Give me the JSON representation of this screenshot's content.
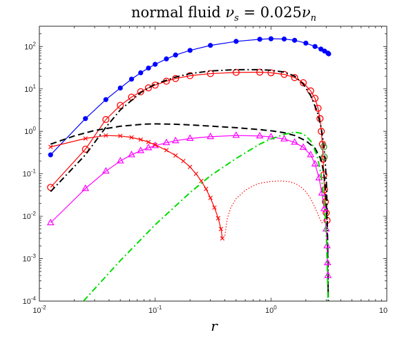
{
  "chart_data": {
    "type": "line",
    "title": "normal fluid ν_s = 0.025ν_n",
    "title_parts": {
      "prefix": "normal fluid ",
      "nu": "ν",
      "sub_s": "s",
      "rhs": " = 0.025",
      "sub_n": "n"
    },
    "xlabel": "r",
    "ylabel": "",
    "xscale": "log",
    "yscale": "log",
    "xlim": [
      0.01,
      10
    ],
    "ylim": [
      0.0001,
      300
    ],
    "grid": false,
    "x_tick_labels": [
      {
        "base": "10",
        "exp": "-2",
        "value": 0.01
      },
      {
        "base": "10",
        "exp": "-1",
        "value": 0.1
      },
      {
        "base": "10",
        "exp": "0",
        "value": 1
      },
      {
        "base": "10",
        "exp": "",
        "value": 10
      }
    ],
    "y_tick_labels": [
      {
        "base": "10",
        "exp": "-4",
        "value": 0.0001
      },
      {
        "base": "10",
        "exp": "-3",
        "value": 0.001
      },
      {
        "base": "10",
        "exp": "-2",
        "value": 0.01
      },
      {
        "base": "10",
        "exp": "-1",
        "value": 0.1
      },
      {
        "base": "10",
        "exp": "0",
        "value": 1
      },
      {
        "base": "10",
        "exp": "1",
        "value": 10
      },
      {
        "base": "10",
        "exp": "2",
        "value": 100
      }
    ],
    "series": [
      {
        "color": "#0000ff",
        "line": "solid",
        "marker": "filled-circle",
        "x": [
          0.0125,
          0.025,
          0.0375,
          0.05,
          0.0625,
          0.075,
          0.0875,
          0.1,
          0.125,
          0.15,
          0.2,
          0.3,
          0.5,
          0.8,
          1.0,
          1.3,
          1.6,
          2.0,
          2.4,
          2.7,
          2.9,
          3.1,
          3.15
        ],
        "y": [
          0.28,
          2.0,
          5.6,
          10.5,
          17.0,
          24.0,
          31.0,
          38.0,
          51.0,
          63.0,
          81.0,
          106.0,
          132.0,
          148.0,
          152.0,
          150.0,
          140.0,
          120.0,
          100.0,
          87.0,
          78.0,
          70.0,
          67.0
        ]
      },
      {
        "color": "#ff0000",
        "line": "solid",
        "marker": "open-circle",
        "x": [
          0.0125,
          0.025,
          0.0375,
          0.05,
          0.0625,
          0.075,
          0.0875,
          0.1,
          0.125,
          0.15,
          0.2,
          0.3,
          0.5,
          0.8,
          1.0,
          1.3,
          1.6,
          1.9,
          2.2,
          2.4,
          2.55,
          2.65,
          2.72,
          2.78,
          2.82,
          2.86,
          2.9,
          2.95,
          3.0,
          3.05
        ],
        "y": [
          0.048,
          0.38,
          1.9,
          4.1,
          6.4,
          8.6,
          10.6,
          12.3,
          15.2,
          17.6,
          20.5,
          23.0,
          24.5,
          24.8,
          24.0,
          22.0,
          18.5,
          14.0,
          9.0,
          6.0,
          3.5,
          2.0,
          1.0,
          0.5,
          0.22,
          0.095,
          0.042,
          0.022,
          0.012,
          0.008
        ]
      },
      {
        "color": "#000000",
        "line": "dash-dot",
        "marker": "none",
        "x": [
          0.0125,
          0.025,
          0.0375,
          0.05,
          0.075,
          0.1,
          0.15,
          0.2,
          0.3,
          0.5,
          0.8,
          1.0,
          1.3,
          1.6,
          1.9,
          2.2,
          2.5,
          2.7,
          2.85,
          2.95,
          3.02,
          3.06,
          3.09,
          3.11,
          3.12
        ],
        "y": [
          0.038,
          0.28,
          1.25,
          3.2,
          8.2,
          13.0,
          19.0,
          23.0,
          26.5,
          28.5,
          28.5,
          27.5,
          25.0,
          20.0,
          13.0,
          7.0,
          3.0,
          1.3,
          0.5,
          0.17,
          0.05,
          0.01,
          0.002,
          0.0005,
          0.0001
        ]
      },
      {
        "color": "#000000",
        "line": "dashed",
        "marker": "none",
        "x": [
          0.0125,
          0.02,
          0.03,
          0.05,
          0.08,
          0.1,
          0.15,
          0.2,
          0.3,
          0.5,
          0.8,
          1.0,
          1.3,
          1.6,
          2.0,
          2.4,
          2.7,
          2.85,
          2.95,
          3.02,
          3.06,
          3.09,
          3.11,
          3.12
        ],
        "y": [
          0.5,
          0.78,
          1.05,
          1.32,
          1.48,
          1.5,
          1.47,
          1.42,
          1.33,
          1.22,
          1.1,
          1.03,
          0.93,
          0.8,
          0.6,
          0.4,
          0.22,
          0.11,
          0.05,
          0.015,
          0.004,
          0.0012,
          0.0003,
          0.0001
        ]
      },
      {
        "color": "#ff00ff",
        "line": "solid",
        "marker": "open-triangle",
        "x": [
          0.0125,
          0.025,
          0.0375,
          0.05,
          0.0625,
          0.075,
          0.0875,
          0.1,
          0.125,
          0.15,
          0.2,
          0.3,
          0.5,
          0.8,
          1.0,
          1.3,
          1.6,
          1.9,
          2.2,
          2.4,
          2.6,
          2.75,
          2.88,
          3.0,
          3.05,
          3.08,
          3.1
        ],
        "y": [
          0.007,
          0.045,
          0.115,
          0.2,
          0.28,
          0.35,
          0.41,
          0.46,
          0.54,
          0.6,
          0.68,
          0.75,
          0.8,
          0.78,
          0.74,
          0.66,
          0.55,
          0.42,
          0.28,
          0.17,
          0.08,
          0.035,
          0.015,
          0.005,
          0.002,
          0.0008,
          0.0004
        ]
      },
      {
        "color": "#ff0000",
        "line": "solid",
        "marker": "cross",
        "x": [
          0.0125,
          0.025,
          0.0375,
          0.05,
          0.0625,
          0.075,
          0.0875,
          0.1,
          0.125,
          0.15,
          0.175,
          0.2,
          0.225,
          0.25,
          0.275,
          0.3,
          0.325,
          0.35,
          0.37,
          0.38
        ],
        "y": [
          0.43,
          0.68,
          0.8,
          0.78,
          0.72,
          0.64,
          0.56,
          0.48,
          0.36,
          0.27,
          0.2,
          0.145,
          0.1,
          0.068,
          0.044,
          0.027,
          0.016,
          0.009,
          0.005,
          0.003
        ]
      },
      {
        "color": "#ff0000",
        "line": "dotted",
        "marker": "none",
        "x": [
          0.4,
          0.42,
          0.45,
          0.5,
          0.6,
          0.7,
          0.8,
          1.0,
          1.2,
          1.4,
          1.6,
          1.8,
          2.0,
          2.2,
          2.4,
          2.55,
          2.65,
          2.75,
          2.85,
          2.95,
          3.02
        ],
        "y": [
          0.0035,
          0.009,
          0.016,
          0.026,
          0.041,
          0.052,
          0.06,
          0.066,
          0.068,
          0.066,
          0.06,
          0.05,
          0.038,
          0.026,
          0.016,
          0.011,
          0.0085,
          0.007,
          0.0075,
          0.009,
          0.011
        ]
      },
      {
        "color": "#00dd00",
        "line": "dash-dot",
        "marker": "none",
        "x": [
          0.024,
          0.05,
          0.1,
          0.2,
          0.3,
          0.5,
          0.8,
          1.0,
          1.3,
          1.6,
          1.9,
          2.2,
          2.5,
          2.7,
          2.85,
          2.95,
          3.02,
          3.06,
          3.09,
          3.11
        ],
        "y": [
          0.0001,
          0.0009,
          0.0063,
          0.036,
          0.09,
          0.23,
          0.5,
          0.66,
          0.85,
          0.96,
          0.88,
          0.6,
          0.27,
          0.1,
          0.03,
          0.009,
          0.0025,
          0.0007,
          0.00025,
          0.0001
        ]
      },
      {
        "color": "#ff0000",
        "line": "none",
        "marker": "open-circle",
        "marker_color": "#4a8c2a",
        "x": [
          2.85,
          2.88
        ],
        "y": [
          0.43,
          0.25
        ]
      }
    ]
  }
}
